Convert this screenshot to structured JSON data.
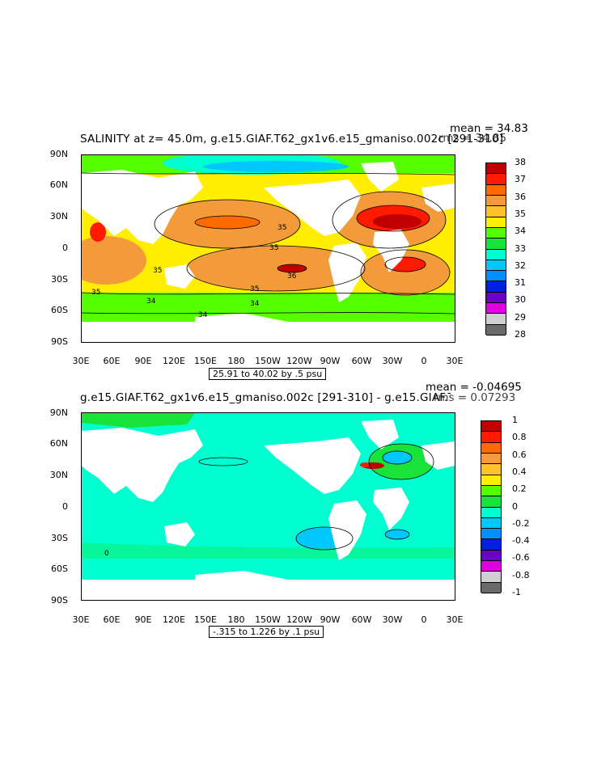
{
  "panels": [
    {
      "title": "SALINITY at z=  45.0m, g.e15.GIAF.T62_gx1v6.e15_gmaniso.002c [291-310]",
      "mean_label": "mean = 34.83",
      "rms_label": "rms = 34.85",
      "contour_info": "25.91 to 40.02 by .5 psu",
      "lat_labels": [
        "90N",
        "60N",
        "30N",
        "0",
        "30S",
        "60S",
        "90S"
      ],
      "lon_labels": [
        "30E",
        "60E",
        "90E",
        "120E",
        "150E",
        "180",
        "150W",
        "120W",
        "90W",
        "60W",
        "30W",
        "0",
        "30E"
      ],
      "colorbar": {
        "labels": [
          "38",
          "37",
          "36",
          "35",
          "34",
          "33",
          "32",
          "31",
          "30",
          "29",
          "28"
        ],
        "colors": [
          "#c00000",
          "#ff1a00",
          "#ff6a00",
          "#f39a3a",
          "#ffc22a",
          "#ffee00",
          "#55ff00",
          "#17e33a",
          "#00ffd0",
          "#00c8ff",
          "#0090ff",
          "#0020e0",
          "#6a00c8",
          "#e000e0",
          "#cfcfcf",
          "#6a6a6a"
        ]
      },
      "contour_labels": [
        "35",
        "35",
        "35",
        "36",
        "35",
        "34",
        "34",
        "34",
        "35"
      ]
    },
    {
      "title": "g.e15.GIAF.T62_gx1v6.e15_gmaniso.002c [291-310] - g.e15.GIAF.T62_gx1v6.e15_",
      "mean_label": "mean = -0.04695",
      "rms_label": "rms = 0.07293",
      "contour_info": "-.315 to 1.226 by .1 psu",
      "lat_labels": [
        "90N",
        "60N",
        "30N",
        "0",
        "30S",
        "60S",
        "90S"
      ],
      "lon_labels": [
        "30E",
        "60E",
        "90E",
        "120E",
        "150E",
        "180",
        "150W",
        "120W",
        "90W",
        "60W",
        "30W",
        "0",
        "30E"
      ],
      "colorbar": {
        "labels": [
          "1",
          "0.8",
          "0.6",
          "0.4",
          "0.2",
          "0",
          "-0.2",
          "-0.4",
          "-0.6",
          "-0.8",
          "-1"
        ],
        "colors": [
          "#c00000",
          "#ff1a00",
          "#ff6a00",
          "#f39a3a",
          "#ffc22a",
          "#ffee00",
          "#55ff00",
          "#17e33a",
          "#00ffd0",
          "#00c8ff",
          "#0090ff",
          "#0020e0",
          "#6a00c8",
          "#e000e0",
          "#cfcfcf",
          "#6a6a6a"
        ]
      },
      "contour_labels": [
        "0"
      ]
    }
  ]
}
